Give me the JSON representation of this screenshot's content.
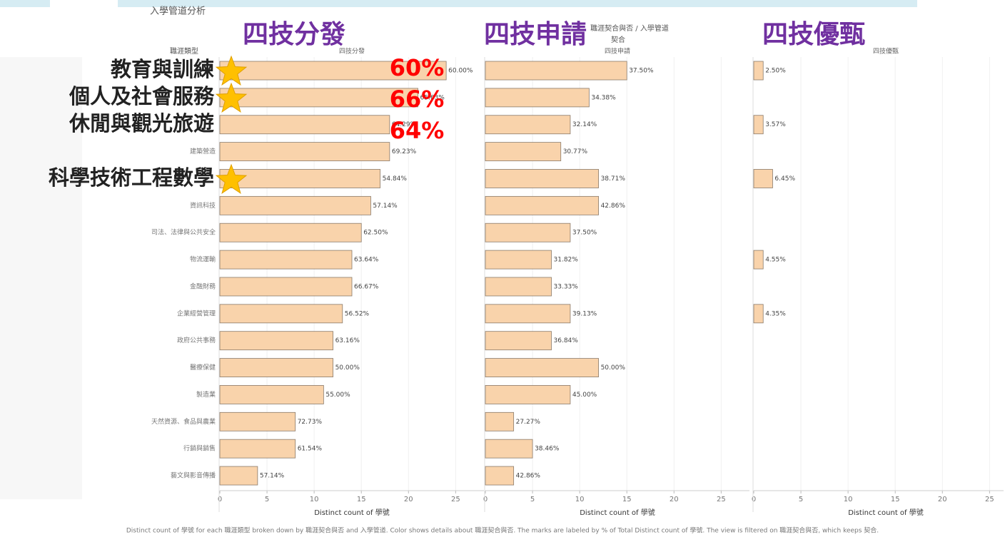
{
  "chart_data": {
    "type": "bar",
    "title": "入學管道分析",
    "legend_title": "職涯契合與否 / 入學管道",
    "legend_value": "契合",
    "category_header": "職涯類型",
    "x_label": "Distinct count of 學號",
    "footnote": "Distinct count of 學號 for each 職涯類型 broken down by 職涯契合與否 and 入學管道.  Color shows details about 職涯契合與否.  The marks are labeled by % of Total Distinct count of 學號. The view is filtered on 職涯契合與否, which keeps 契合.",
    "categories": [
      null,
      null,
      null,
      "建築營造",
      null,
      "資訊科技",
      "司法、法律與公共安全",
      "物流運輸",
      "金融財務",
      "企業經營管理",
      "政府公共事務",
      "醫療保健",
      "製造業",
      "天然資源、食品與農業",
      "行銷與銷售",
      "藝文與影音傳播"
    ],
    "xlim": [
      0,
      28
    ],
    "xticks": [
      0,
      5,
      10,
      15,
      20,
      25
    ],
    "grid": true,
    "series": [
      {
        "name": "四技分發",
        "color": "#f9d3ab",
        "values": [
          24,
          21,
          18,
          18,
          17,
          16,
          15,
          14,
          14,
          13,
          12,
          12,
          11,
          8,
          8,
          4
        ],
        "value_labels": [
          "60.00%",
          "65.63%",
          "64.29%",
          "69.23%",
          "54.84%",
          "57.14%",
          "62.50%",
          "63.64%",
          "66.67%",
          "56.52%",
          "63.16%",
          "50.00%",
          "55.00%",
          "72.73%",
          "61.54%",
          "57.14%"
        ]
      },
      {
        "name": "四技申請",
        "color": "#f9d3ab",
        "values": [
          15,
          11,
          9,
          8,
          12,
          12,
          9,
          7,
          7,
          9,
          7,
          12,
          9,
          3,
          5,
          3
        ],
        "value_labels": [
          "37.50%",
          "34.38%",
          "32.14%",
          "30.77%",
          "38.71%",
          "42.86%",
          "37.50%",
          "31.82%",
          "33.33%",
          "39.13%",
          "36.84%",
          "50.00%",
          "45.00%",
          "27.27%",
          "38.46%",
          "42.86%"
        ]
      },
      {
        "name": "四技優甄",
        "color": "#f9d3ab",
        "values": [
          1,
          null,
          1,
          null,
          2,
          null,
          null,
          1,
          null,
          1,
          null,
          null,
          null,
          null,
          null,
          null
        ],
        "value_labels": [
          "2.50%",
          null,
          "3.57%",
          null,
          "6.45%",
          null,
          null,
          "4.55%",
          null,
          "4.35%",
          null,
          null,
          null,
          null,
          null,
          null
        ]
      }
    ],
    "annotations": {
      "panels": [
        "四技分發",
        "四技申請",
        "四技優甄"
      ],
      "rows": [
        "教育與訓練",
        "個人及社會服務",
        "休閒與觀光旅遊",
        "科學技術工程數學"
      ],
      "percents": [
        "60%",
        "66%",
        "64%"
      ]
    }
  }
}
